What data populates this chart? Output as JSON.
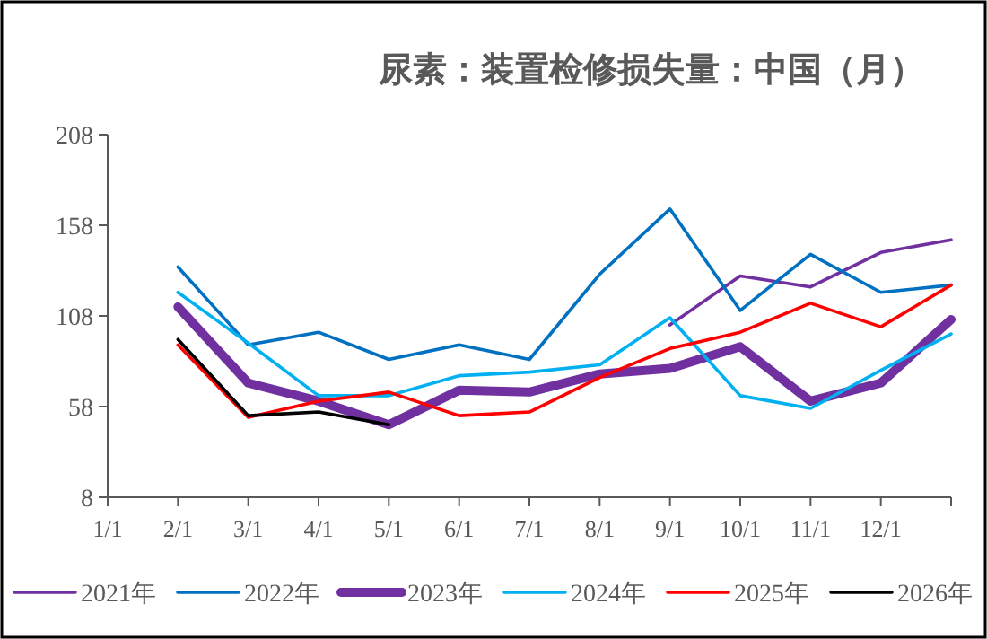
{
  "chart_data": {
    "type": "line",
    "title": "尿素：装置检修损失量：中国（月）",
    "categories": [
      "1/1",
      "2/1",
      "3/1",
      "4/1",
      "5/1",
      "6/1",
      "7/1",
      "8/1",
      "9/1",
      "10/1",
      "11/1",
      "12/1",
      null
    ],
    "ylim": [
      8,
      208
    ],
    "yticks": [
      8,
      58,
      108,
      158,
      208
    ],
    "grid": false,
    "legend": "bottom",
    "marker": "none",
    "series": [
      {
        "name": "2021年",
        "color": "#7030a0",
        "values": [
          null,
          null,
          null,
          null,
          null,
          null,
          null,
          null,
          103,
          130,
          124,
          143,
          150
        ]
      },
      {
        "name": "2022年",
        "color": "#0070c0",
        "values": [
          null,
          135,
          92,
          99,
          84,
          92,
          84,
          131,
          167,
          111,
          142,
          121,
          125
        ]
      },
      {
        "name": "2023年",
        "color": "#7030a0",
        "values": [
          null,
          113,
          71,
          61,
          48,
          67,
          66,
          76,
          79,
          91,
          61,
          71,
          106
        ]
      },
      {
        "name": "2024年",
        "color": "#00b0f0",
        "values": [
          null,
          121,
          93,
          64,
          64,
          75,
          77,
          81,
          107,
          64,
          57,
          78,
          98
        ]
      },
      {
        "name": "2025年",
        "color": "#ff0000",
        "values": [
          null,
          92,
          52,
          61,
          66,
          53,
          55,
          74,
          90,
          99,
          115,
          102,
          125
        ]
      },
      {
        "name": "2026年",
        "color": "#000000",
        "values": [
          null,
          95,
          53,
          55,
          48,
          null,
          null,
          null,
          null,
          null,
          null,
          null,
          null
        ]
      }
    ]
  }
}
